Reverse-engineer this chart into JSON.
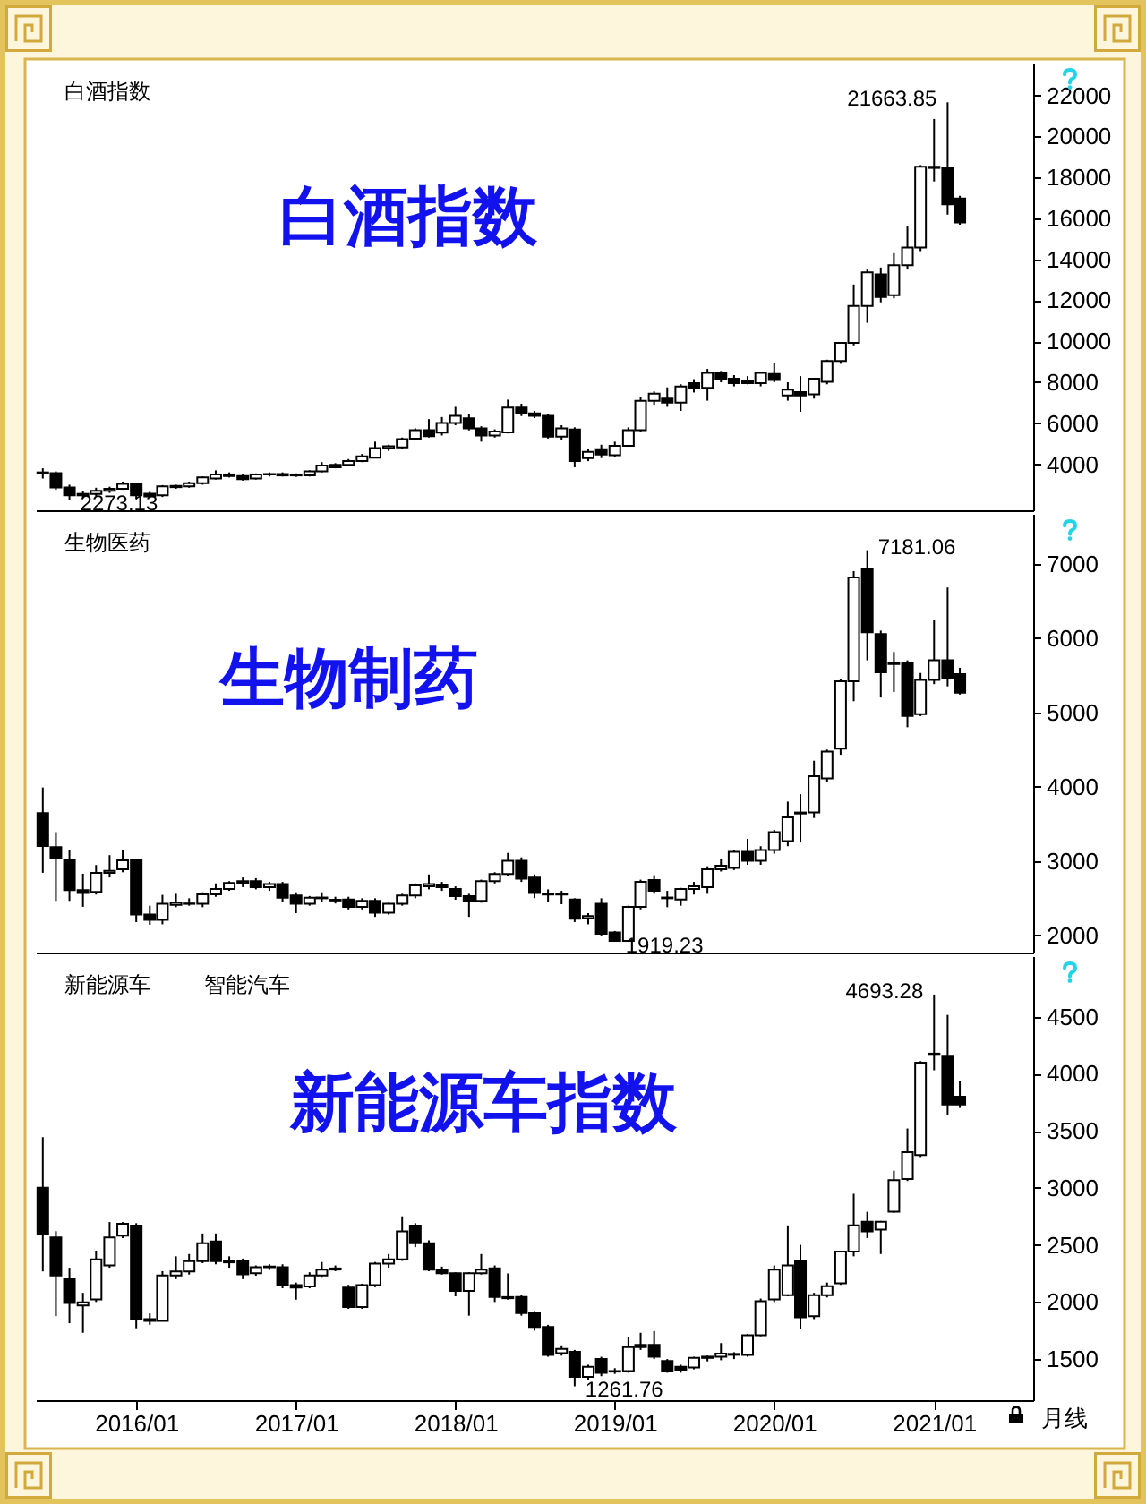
{
  "chart_data": [
    {
      "type": "candlestick",
      "title": "白酒指数",
      "subtitle": "白酒指数",
      "x": [
        "2015-06",
        "2015-07",
        "2015-08",
        "2015-09",
        "2015-10",
        "2015-11",
        "2015-12",
        "2016-01",
        "2016-02",
        "2016-03",
        "2016-04",
        "2016-05",
        "2016-06",
        "2016-07",
        "2016-08",
        "2016-09",
        "2016-10",
        "2016-11",
        "2016-12",
        "2017-01",
        "2017-02",
        "2017-03",
        "2017-04",
        "2017-05",
        "2017-06",
        "2017-07",
        "2017-08",
        "2017-09",
        "2017-10",
        "2017-11",
        "2017-12",
        "2018-01",
        "2018-02",
        "2018-03",
        "2018-04",
        "2018-05",
        "2018-06",
        "2018-07",
        "2018-08",
        "2018-09",
        "2018-10",
        "2018-11",
        "2018-12",
        "2019-01",
        "2019-02",
        "2019-03",
        "2019-04",
        "2019-05",
        "2019-06",
        "2019-07",
        "2019-08",
        "2019-09",
        "2019-10",
        "2019-11",
        "2019-12",
        "2020-01",
        "2020-02",
        "2020-03",
        "2020-04",
        "2020-05",
        "2020-06",
        "2020-07",
        "2020-08",
        "2020-09",
        "2020-10",
        "2020-11",
        "2020-12",
        "2021-01",
        "2021-02",
        "2021-03"
      ],
      "ohlc": [
        [
          3600,
          3800,
          3300,
          3550
        ],
        [
          3560,
          3650,
          2750,
          2860
        ],
        [
          2860,
          3000,
          2273.13,
          2480
        ],
        [
          2480,
          2700,
          2350,
          2550
        ],
        [
          2550,
          2850,
          2450,
          2700
        ],
        [
          2700,
          2900,
          2600,
          2800
        ],
        [
          2800,
          3150,
          2750,
          3040
        ],
        [
          3040,
          3100,
          2300,
          2480
        ],
        [
          2560,
          2650,
          2350,
          2430
        ],
        [
          2480,
          2980,
          2400,
          2920
        ],
        [
          2880,
          3000,
          2800,
          2940
        ],
        [
          2920,
          3150,
          2850,
          3070
        ],
        [
          3070,
          3400,
          3000,
          3360
        ],
        [
          3300,
          3700,
          3250,
          3500
        ],
        [
          3500,
          3600,
          3350,
          3420
        ],
        [
          3420,
          3500,
          3200,
          3270
        ],
        [
          3300,
          3550,
          3250,
          3500
        ],
        [
          3500,
          3600,
          3400,
          3520
        ],
        [
          3520,
          3600,
          3400,
          3450
        ],
        [
          3450,
          3550,
          3380,
          3500
        ],
        [
          3450,
          3700,
          3400,
          3650
        ],
        [
          3650,
          4100,
          3600,
          3940
        ],
        [
          3850,
          4050,
          3800,
          3970
        ],
        [
          3970,
          4250,
          3900,
          4150
        ],
        [
          4150,
          4500,
          4100,
          4380
        ],
        [
          4320,
          5100,
          4300,
          4790
        ],
        [
          4780,
          4950,
          4650,
          4870
        ],
        [
          4820,
          5300,
          4750,
          5220
        ],
        [
          5250,
          5750,
          5200,
          5660
        ],
        [
          5660,
          6200,
          5300,
          5370
        ],
        [
          5540,
          6300,
          5400,
          6010
        ],
        [
          6010,
          6800,
          5900,
          6360
        ],
        [
          6240,
          6450,
          5650,
          5750
        ],
        [
          5750,
          5850,
          5100,
          5400
        ],
        [
          5400,
          5700,
          5300,
          5600
        ],
        [
          5550,
          7150,
          5500,
          6770
        ],
        [
          6770,
          6950,
          6350,
          6480
        ],
        [
          6480,
          6600,
          6250,
          6360
        ],
        [
          6360,
          6450,
          5250,
          5340
        ],
        [
          5340,
          5900,
          5200,
          5750
        ],
        [
          5690,
          5800,
          3850,
          4150
        ],
        [
          4300,
          4750,
          4150,
          4600
        ],
        [
          4730,
          4950,
          4300,
          4470
        ],
        [
          4440,
          5100,
          4350,
          4900
        ],
        [
          4900,
          5800,
          4850,
          5660
        ],
        [
          5660,
          7300,
          5600,
          7090
        ],
        [
          7090,
          7550,
          6900,
          7440
        ],
        [
          7200,
          7750,
          6800,
          7000
        ],
        [
          7000,
          7900,
          6600,
          7790
        ],
        [
          7960,
          8150,
          7500,
          7730
        ],
        [
          7730,
          8650,
          7100,
          8460
        ],
        [
          8460,
          8550,
          8000,
          8170
        ],
        [
          8170,
          8350,
          7800,
          7960
        ],
        [
          8080,
          8300,
          7900,
          7960
        ],
        [
          7960,
          8500,
          7800,
          8460
        ],
        [
          8400,
          8950,
          8000,
          8110
        ],
        [
          7350,
          8000,
          7100,
          7640
        ],
        [
          7520,
          8300,
          6560,
          7350
        ],
        [
          7410,
          8200,
          7200,
          8170
        ],
        [
          8020,
          9100,
          7900,
          9040
        ],
        [
          9040,
          9950,
          8900,
          9920
        ],
        [
          9920,
          12770,
          9800,
          11720
        ],
        [
          11720,
          13500,
          10900,
          13360
        ],
        [
          13270,
          13600,
          11900,
          12160
        ],
        [
          12250,
          14300,
          12100,
          13710
        ],
        [
          13710,
          15600,
          13500,
          14580
        ],
        [
          14580,
          18600,
          14400,
          18520
        ],
        [
          18520,
          20850,
          17800,
          18460
        ],
        [
          18460,
          21663.85,
          16180,
          16680
        ],
        [
          16970,
          17100,
          15690,
          15800
        ]
      ],
      "xlim": [
        "2015-05-16",
        "2021-08-16"
      ],
      "ylim": [
        1750,
        23600
      ],
      "yticks": [
        4000,
        6000,
        8000,
        10000,
        12000,
        14000,
        16000,
        18000,
        20000,
        22000
      ],
      "tick_labels": "y",
      "annotations": [
        {
          "text": "21663.85",
          "x": "2021-02",
          "y": 21663.85
        },
        {
          "text": "2273.13",
          "x": "2015-08",
          "y": 2273.13
        }
      ]
    },
    {
      "type": "candlestick",
      "title": "生物制药",
      "subtitle": "生物医药",
      "x": [
        "2015-06",
        "2015-07",
        "2015-08",
        "2015-09",
        "2015-10",
        "2015-11",
        "2015-12",
        "2016-01",
        "2016-02",
        "2016-03",
        "2016-04",
        "2016-05",
        "2016-06",
        "2016-07",
        "2016-08",
        "2016-09",
        "2016-10",
        "2016-11",
        "2016-12",
        "2017-01",
        "2017-02",
        "2017-03",
        "2017-04",
        "2017-05",
        "2017-06",
        "2017-07",
        "2017-08",
        "2017-09",
        "2017-10",
        "2017-11",
        "2017-12",
        "2018-01",
        "2018-02",
        "2018-03",
        "2018-04",
        "2018-05",
        "2018-06",
        "2018-07",
        "2018-08",
        "2018-09",
        "2018-10",
        "2018-11",
        "2018-12",
        "2019-01",
        "2019-02",
        "2019-03",
        "2019-04",
        "2019-05",
        "2019-06",
        "2019-07",
        "2019-08",
        "2019-09",
        "2019-10",
        "2019-11",
        "2019-12",
        "2020-01",
        "2020-02",
        "2020-03",
        "2020-04",
        "2020-05",
        "2020-06",
        "2020-07",
        "2020-08",
        "2020-09",
        "2020-10",
        "2020-11",
        "2020-12",
        "2021-01",
        "2021-02",
        "2021-03"
      ],
      "ohlc": [
        [
          3645,
          3990,
          2843,
          3204
        ],
        [
          3188,
          3389,
          2465,
          3043
        ],
        [
          3019,
          3150,
          2465,
          2610
        ],
        [
          2610,
          2830,
          2385,
          2570
        ],
        [
          2586,
          2947,
          2550,
          2843
        ],
        [
          2843,
          3080,
          2780,
          2870
        ],
        [
          2891,
          3148,
          2850,
          3011
        ],
        [
          3011,
          3030,
          2180,
          2281
        ],
        [
          2281,
          2400,
          2144,
          2209
        ],
        [
          2209,
          2546,
          2150,
          2425
        ],
        [
          2410,
          2560,
          2380,
          2440
        ],
        [
          2425,
          2500,
          2400,
          2430
        ],
        [
          2425,
          2580,
          2380,
          2554
        ],
        [
          2554,
          2700,
          2520,
          2626
        ],
        [
          2626,
          2730,
          2600,
          2706
        ],
        [
          2706,
          2780,
          2650,
          2730
        ],
        [
          2730,
          2770,
          2620,
          2650
        ],
        [
          2650,
          2720,
          2600,
          2690
        ],
        [
          2690,
          2720,
          2450,
          2506
        ],
        [
          2538,
          2580,
          2300,
          2425
        ],
        [
          2425,
          2530,
          2400,
          2506
        ],
        [
          2500,
          2580,
          2450,
          2510
        ],
        [
          2480,
          2520,
          2430,
          2470
        ],
        [
          2482,
          2520,
          2350,
          2385
        ],
        [
          2385,
          2500,
          2350,
          2465
        ],
        [
          2465,
          2500,
          2250,
          2305
        ],
        [
          2305,
          2440,
          2280,
          2425
        ],
        [
          2425,
          2560,
          2400,
          2538
        ],
        [
          2538,
          2700,
          2500,
          2674
        ],
        [
          2660,
          2820,
          2620,
          2690
        ],
        [
          2680,
          2720,
          2600,
          2650
        ],
        [
          2626,
          2660,
          2480,
          2530
        ],
        [
          2530,
          2560,
          2250,
          2465
        ],
        [
          2465,
          2750,
          2440,
          2730
        ],
        [
          2730,
          2850,
          2700,
          2827
        ],
        [
          2827,
          3110,
          2800,
          3003
        ],
        [
          3003,
          3050,
          2720,
          2762
        ],
        [
          2778,
          2820,
          2500,
          2570
        ],
        [
          2550,
          2620,
          2450,
          2560
        ],
        [
          2560,
          2600,
          2420,
          2550
        ],
        [
          2482,
          2500,
          2180,
          2225
        ],
        [
          2230,
          2300,
          2150,
          2260
        ],
        [
          2425,
          2500,
          2000,
          2024
        ],
        [
          2040,
          2060,
          1919.23,
          1928
        ],
        [
          1928,
          2400,
          1925,
          2385
        ],
        [
          2385,
          2750,
          2350,
          2722
        ],
        [
          2746,
          2810,
          2560,
          2602
        ],
        [
          2500,
          2600,
          2380,
          2510
        ],
        [
          2482,
          2640,
          2400,
          2626
        ],
        [
          2626,
          2720,
          2550,
          2660
        ],
        [
          2650,
          2930,
          2560,
          2891
        ],
        [
          2891,
          3030,
          2860,
          2939
        ],
        [
          2907,
          3150,
          2880,
          3124
        ],
        [
          3124,
          3300,
          2950,
          3003
        ],
        [
          3003,
          3200,
          2950,
          3148
        ],
        [
          3148,
          3420,
          3100,
          3389
        ],
        [
          3268,
          3800,
          3200,
          3589
        ],
        [
          3640,
          3900,
          3250,
          3653
        ],
        [
          3653,
          4350,
          3580,
          4143
        ],
        [
          4111,
          4500,
          4070,
          4472
        ],
        [
          4512,
          5450,
          4430,
          5419
        ],
        [
          5419,
          6900,
          5150,
          6816
        ],
        [
          6936,
          7181.06,
          5700,
          6077
        ],
        [
          6053,
          6100,
          5200,
          5539
        ],
        [
          5660,
          5812,
          5275,
          5650
        ],
        [
          5660,
          5700,
          4800,
          4953
        ],
        [
          4977,
          5530,
          4950,
          5435
        ],
        [
          5435,
          6240,
          5380,
          5700
        ],
        [
          5700,
          6680,
          5350,
          5459
        ],
        [
          5515,
          5600,
          5240,
          5266
        ]
      ],
      "xlim": [
        "2015-05-16",
        "2021-08-16"
      ],
      "ylim": [
        1770,
        7670
      ],
      "yticks": [
        2000,
        3000,
        4000,
        5000,
        6000,
        7000
      ],
      "tick_labels": "y",
      "annotations": [
        {
          "text": "7181.06",
          "x": "2020-08",
          "y": 7181.06
        },
        {
          "text": "1919.23",
          "x": "2019-01",
          "y": 1919.23
        }
      ]
    },
    {
      "type": "candlestick",
      "title": "新能源车指数",
      "subtitle": "新能源车",
      "xlabel": "月线",
      "x": [
        "2015-06",
        "2015-07",
        "2015-08",
        "2015-09",
        "2015-10",
        "2015-11",
        "2015-12",
        "2016-01",
        "2016-02",
        "2016-03",
        "2016-04",
        "2016-05",
        "2016-06",
        "2016-07",
        "2016-08",
        "2016-09",
        "2016-10",
        "2016-11",
        "2016-12",
        "2017-01",
        "2017-02",
        "2017-03",
        "2017-04",
        "2017-05",
        "2017-06",
        "2017-07",
        "2017-08",
        "2017-09",
        "2017-10",
        "2017-11",
        "2017-12",
        "2018-01",
        "2018-02",
        "2018-03",
        "2018-04",
        "2018-05",
        "2018-06",
        "2018-07",
        "2018-08",
        "2018-09",
        "2018-10",
        "2018-11",
        "2018-12",
        "2019-01",
        "2019-02",
        "2019-03",
        "2019-04",
        "2019-05",
        "2019-06",
        "2019-07",
        "2019-08",
        "2019-09",
        "2019-10",
        "2019-11",
        "2019-12",
        "2020-01",
        "2020-02",
        "2020-03",
        "2020-04",
        "2020-05",
        "2020-06",
        "2020-07",
        "2020-08",
        "2020-09",
        "2020-10",
        "2020-11",
        "2020-12",
        "2021-01",
        "2021-02",
        "2021-03"
      ],
      "ohlc": [
        [
          3000,
          3444,
          2268,
          2597
        ],
        [
          2566,
          2620,
          1876,
          2232
        ],
        [
          2200,
          2300,
          1814,
          1991
        ],
        [
          1970,
          2080,
          1730,
          1996
        ],
        [
          2023,
          2450,
          2000,
          2373
        ],
        [
          2320,
          2700,
          2300,
          2566
        ],
        [
          2582,
          2700,
          2560,
          2686
        ],
        [
          2670,
          2690,
          1770,
          1850
        ],
        [
          1850,
          1900,
          1800,
          1834
        ],
        [
          1834,
          2270,
          1830,
          2232
        ],
        [
          2232,
          2400,
          2200,
          2268
        ],
        [
          2268,
          2420,
          2240,
          2357
        ],
        [
          2357,
          2600,
          2340,
          2514
        ],
        [
          2530,
          2600,
          2330,
          2357
        ],
        [
          2347,
          2400,
          2300,
          2357
        ],
        [
          2357,
          2380,
          2200,
          2242
        ],
        [
          2252,
          2320,
          2230,
          2305
        ],
        [
          2305,
          2330,
          2280,
          2310
        ],
        [
          2305,
          2330,
          2120,
          2148
        ],
        [
          2148,
          2170,
          2020,
          2127
        ],
        [
          2137,
          2260,
          2120,
          2232
        ],
        [
          2232,
          2350,
          2220,
          2284
        ],
        [
          2284,
          2320,
          2270,
          2294
        ],
        [
          2127,
          2150,
          1940,
          1955
        ],
        [
          1955,
          2160,
          1940,
          2148
        ],
        [
          2148,
          2350,
          2130,
          2336
        ],
        [
          2336,
          2420,
          2300,
          2373
        ],
        [
          2373,
          2750,
          2360,
          2618
        ],
        [
          2670,
          2690,
          2480,
          2514
        ],
        [
          2514,
          2540,
          2270,
          2284
        ],
        [
          2284,
          2310,
          2240,
          2252
        ],
        [
          2252,
          2260,
          2050,
          2096
        ],
        [
          2096,
          2260,
          1880,
          2252
        ],
        [
          2252,
          2420,
          2240,
          2284
        ],
        [
          2294,
          2320,
          2000,
          2043
        ],
        [
          2043,
          2250,
          2020,
          2033
        ],
        [
          2043,
          2060,
          1880,
          1902
        ],
        [
          1902,
          1920,
          1750,
          1782
        ],
        [
          1782,
          1800,
          1520,
          1537
        ],
        [
          1552,
          1620,
          1530,
          1589
        ],
        [
          1563,
          1580,
          1261.76,
          1343
        ],
        [
          1343,
          1450,
          1320,
          1432
        ],
        [
          1500,
          1520,
          1350,
          1380
        ],
        [
          1390,
          1420,
          1370,
          1395
        ],
        [
          1395,
          1690,
          1380,
          1605
        ],
        [
          1605,
          1730,
          1580,
          1625
        ],
        [
          1625,
          1745,
          1500,
          1521
        ],
        [
          1484,
          1500,
          1380,
          1395
        ],
        [
          1432,
          1450,
          1380,
          1406
        ],
        [
          1427,
          1520,
          1410,
          1510
        ],
        [
          1510,
          1530,
          1480,
          1521
        ],
        [
          1521,
          1640,
          1490,
          1547
        ],
        [
          1537,
          1560,
          1500,
          1545
        ],
        [
          1537,
          1720,
          1520,
          1709
        ],
        [
          1709,
          2030,
          1700,
          2007
        ],
        [
          2023,
          2320,
          2000,
          2284
        ],
        [
          2059,
          2671,
          2050,
          2320
        ],
        [
          2357,
          2500,
          1763,
          1866
        ],
        [
          1876,
          2080,
          1850,
          2059
        ],
        [
          2059,
          2170,
          2040,
          2138
        ],
        [
          2164,
          2450,
          2150,
          2441
        ],
        [
          2441,
          2948,
          2400,
          2671
        ],
        [
          2702,
          2790,
          2560,
          2618
        ],
        [
          2634,
          2710,
          2420,
          2702
        ],
        [
          2791,
          3150,
          2780,
          3068
        ],
        [
          3078,
          3520,
          3060,
          3313
        ],
        [
          3287,
          4110,
          3270,
          4097
        ],
        [
          4176,
          4693.28,
          4030,
          4165
        ],
        [
          4150,
          4515,
          3640,
          3731
        ],
        [
          3799,
          3940,
          3700,
          3731
        ]
      ],
      "xlim": [
        "2015-05-16",
        "2021-08-16"
      ],
      "xticks": [
        {
          "value": "2016-01",
          "label": "2016/01"
        },
        {
          "value": "2017-01",
          "label": "2017/01"
        },
        {
          "value": "2018-01",
          "label": "2018/01"
        },
        {
          "value": "2019-01",
          "label": "2019/01"
        },
        {
          "value": "2020-01",
          "label": "2020/01"
        },
        {
          "value": "2021-01",
          "label": "2021/01"
        }
      ],
      "ylim": [
        1140,
        5030
      ],
      "yticks": [
        1500,
        2000,
        2500,
        3000,
        3500,
        4000,
        4500
      ],
      "annotations": [
        "智能汽车",
        {
          "text": "4693.28",
          "x": "2021-01",
          "y": 4693.28
        },
        {
          "text": "1261.76",
          "x": "2018-10",
          "y": 1261.76
        }
      ]
    }
  ]
}
